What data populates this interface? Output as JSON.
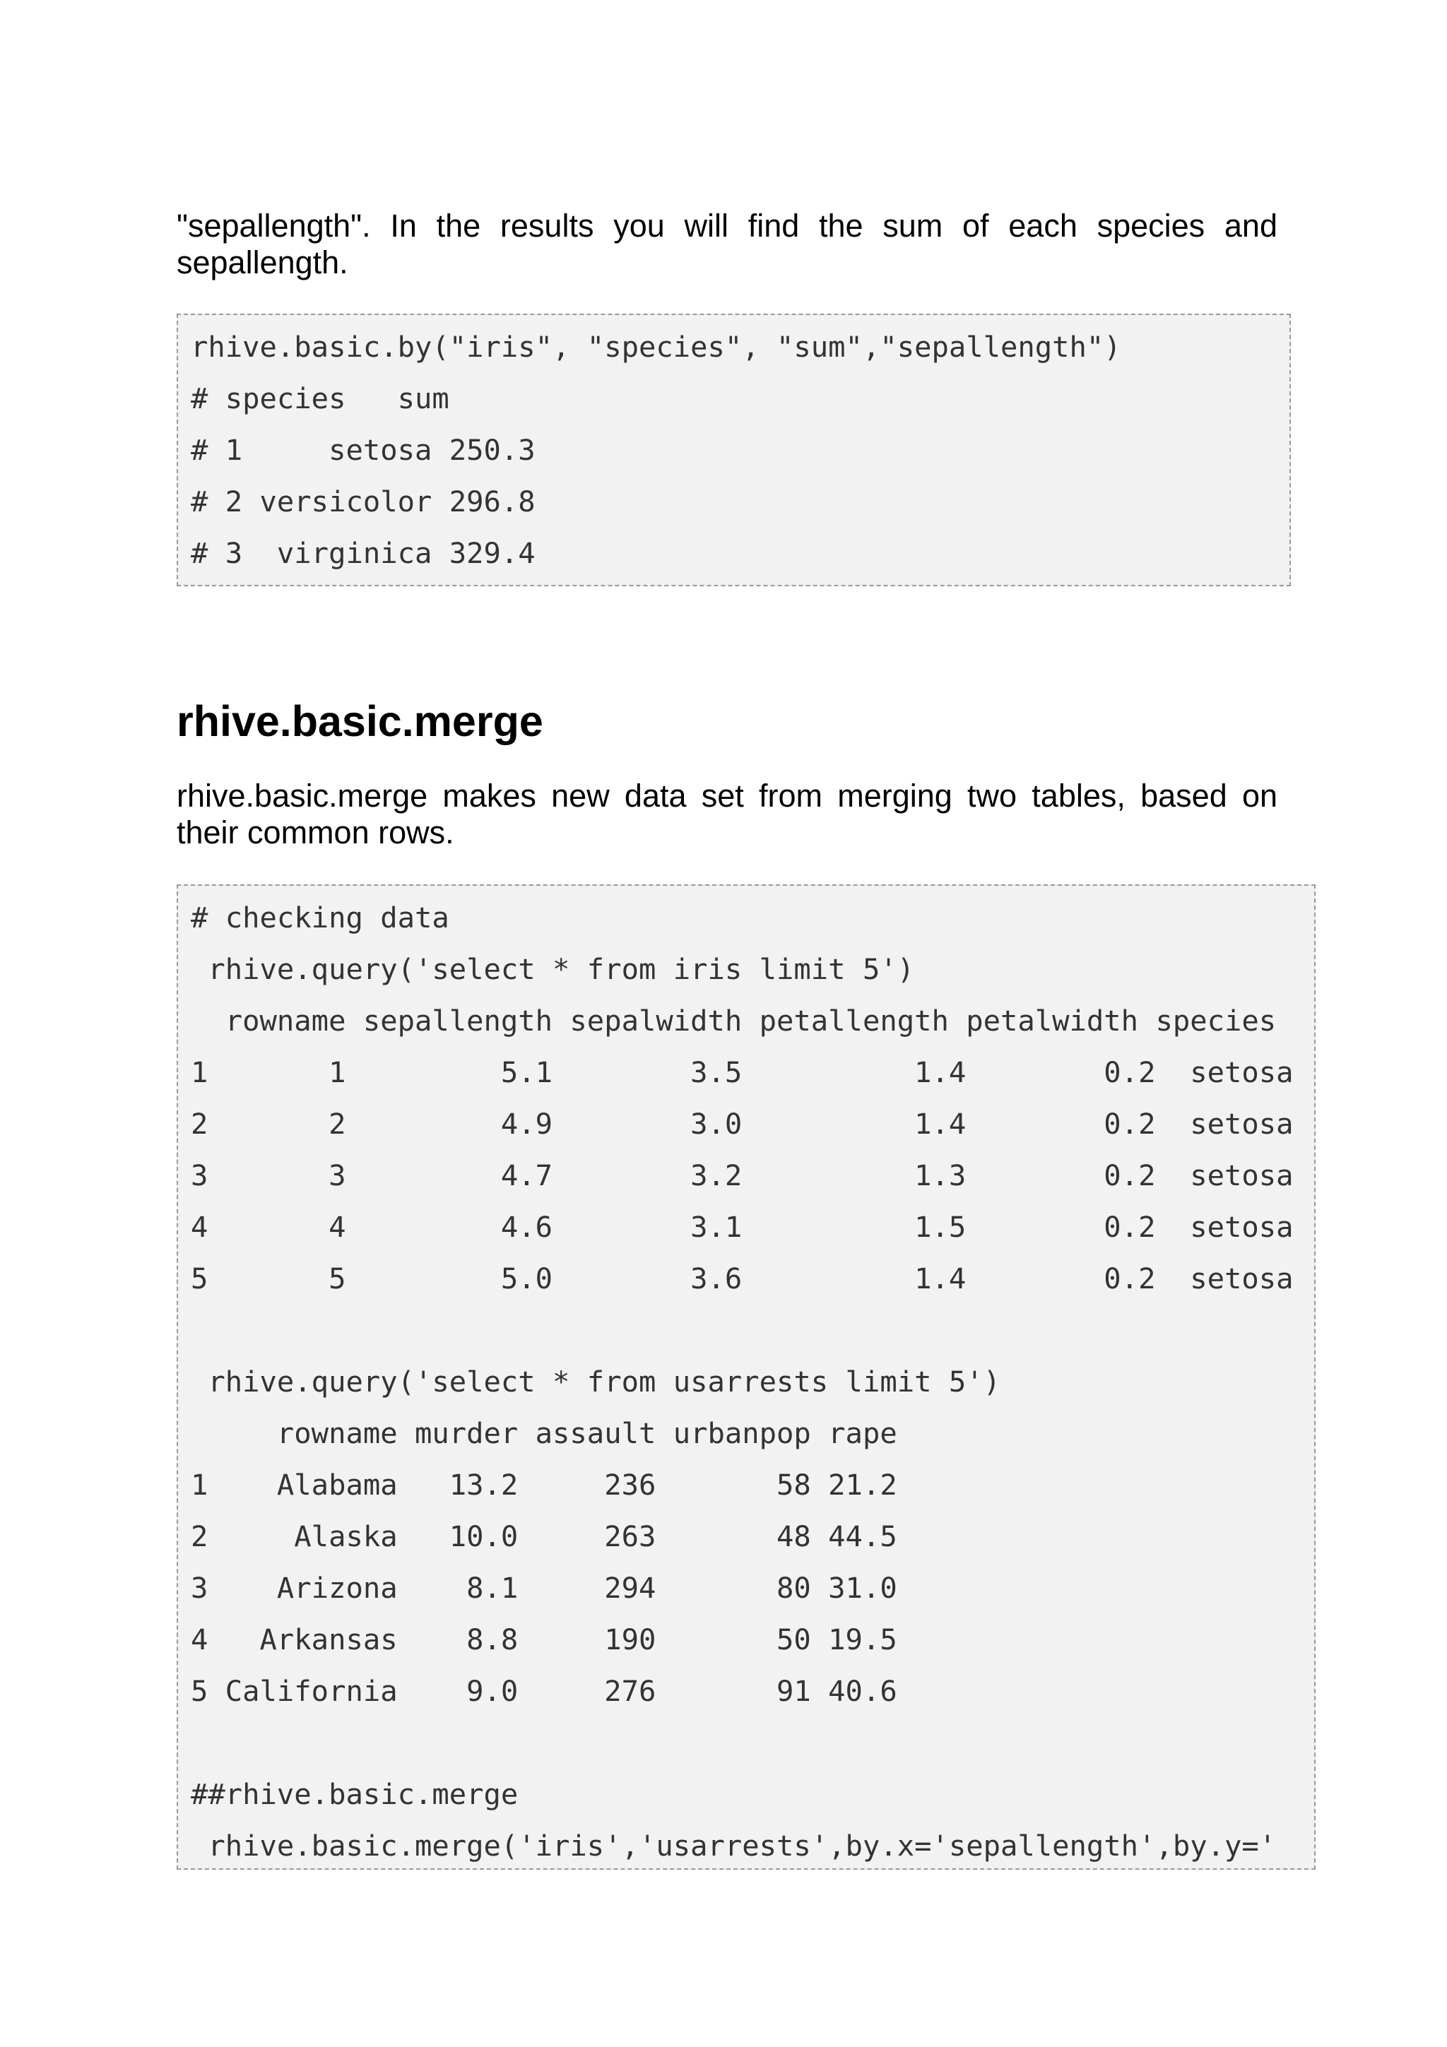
{
  "intro": {
    "lines": [
      "\"sepallength\". In the results you will find the sum of each species and",
      "sepallength."
    ]
  },
  "code_block_1": {
    "lines": [
      "rhive.basic.by(\"iris\", \"species\", \"sum\",\"sepallength\")",
      "# species   sum",
      "# 1     setosa 250.3",
      "# 2 versicolor 296.8",
      "# 3  virginica 329.4"
    ]
  },
  "section": {
    "heading": "rhive.basic.merge",
    "description_lines": [
      "rhive.basic.merge makes new data set from merging two tables, based on",
      "their common rows."
    ]
  },
  "code_block_2": {
    "lines": [
      "# checking data",
      " rhive.query('select * from iris limit 5')",
      "  rowname sepallength sepalwidth petallength petalwidth species",
      "1       1         5.1        3.5          1.4        0.2  setosa",
      "2       2         4.9        3.0          1.4        0.2  setosa",
      "3       3         4.7        3.2          1.3        0.2  setosa",
      "4       4         4.6        3.1          1.5        0.2  setosa",
      "5       5         5.0        3.6          1.4        0.2  setosa",
      "",
      " rhive.query('select * from usarrests limit 5')",
      "     rowname murder assault urbanpop rape",
      "1    Alabama   13.2     236       58 21.2",
      "2     Alaska   10.0     263       48 44.5",
      "3    Arizona    8.1     294       80 31.0",
      "4   Arkansas    8.8     190       50 19.5",
      "5 California    9.0     276       91 40.6",
      "",
      "##rhive.basic.merge",
      " rhive.basic.merge('iris','usarrests',by.x='sepallength',by.y='"
    ]
  }
}
